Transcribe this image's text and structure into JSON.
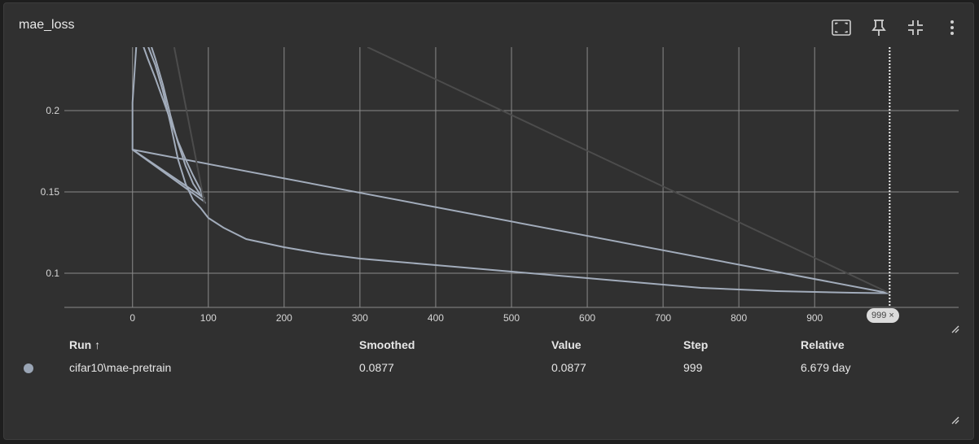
{
  "card": {
    "title": "mae_loss",
    "tools": [
      "fullscreen-icon",
      "pin-icon",
      "fit-domain-icon",
      "more-vert-icon"
    ]
  },
  "chart_data": {
    "type": "line",
    "title": "mae_loss",
    "xlabel": "",
    "ylabel": "",
    "xlim": [
      -90,
      1090
    ],
    "ylim": [
      0.079,
      0.239
    ],
    "x_ticks": [
      "0",
      "100",
      "200",
      "300",
      "400",
      "500",
      "600",
      "700",
      "800",
      "900"
    ],
    "y_ticks": [
      "0.1",
      "0.15",
      "0.2"
    ],
    "grid": true,
    "cursor_step": "999",
    "series": [
      {
        "name": "cifar10\\mae-pretrain",
        "color": "#a2acbb",
        "x": [
          0,
          5,
          10,
          20,
          30,
          40,
          50,
          60,
          70,
          80,
          90,
          95,
          100,
          120,
          150,
          200,
          250,
          300,
          350,
          400,
          450,
          500,
          550,
          600,
          650,
          700,
          750,
          800,
          850,
          900,
          950,
          999
        ],
        "y": [
          0.3,
          0.26,
          0.25,
          0.24,
          0.228,
          0.212,
          0.192,
          0.17,
          0.155,
          0.145,
          0.14,
          0.137,
          0.134,
          0.128,
          0.121,
          0.116,
          0.112,
          0.109,
          0.107,
          0.105,
          0.103,
          0.101,
          0.099,
          0.097,
          0.095,
          0.093,
          0.091,
          0.09,
          0.089,
          0.0885,
          0.088,
          0.0877
        ]
      },
      {
        "name": "",
        "color": "#a2acbb",
        "x": [
          0,
          10,
          20,
          30,
          40,
          50,
          60,
          70,
          80,
          90,
          95,
          0,
          999
        ],
        "y": [
          0.28,
          0.258,
          0.246,
          0.232,
          0.216,
          0.197,
          0.18,
          0.166,
          0.155,
          0.148,
          0.146,
          0.176,
          0.0877
        ]
      },
      {
        "name": "",
        "color": "#a2acbb",
        "x": [
          0,
          10,
          20,
          30,
          40,
          50,
          60,
          70,
          80,
          90,
          95,
          0,
          0,
          5
        ],
        "y": [
          0.26,
          0.245,
          0.232,
          0.22,
          0.207,
          0.194,
          0.181,
          0.17,
          0.16,
          0.151,
          0.144,
          0.176,
          0.205,
          0.24
        ]
      },
      {
        "name": "",
        "color": "#4c4c4c",
        "x": [
          310,
          999
        ],
        "y": [
          0.239,
          0.0877
        ]
      },
      {
        "name": "",
        "color": "#4c4c4c",
        "x": [
          55,
          95
        ],
        "y": [
          0.239,
          0.143
        ]
      }
    ]
  },
  "table": {
    "headers": [
      "Run ↑",
      "Smoothed",
      "Value",
      "Step",
      "Relative"
    ],
    "rows": [
      {
        "color": "#9aa5b5",
        "run": "cifar10\\mae-pretrain",
        "smoothed": "0.0877",
        "value": "0.0877",
        "step": "999",
        "relative": "6.679 day"
      }
    ]
  }
}
